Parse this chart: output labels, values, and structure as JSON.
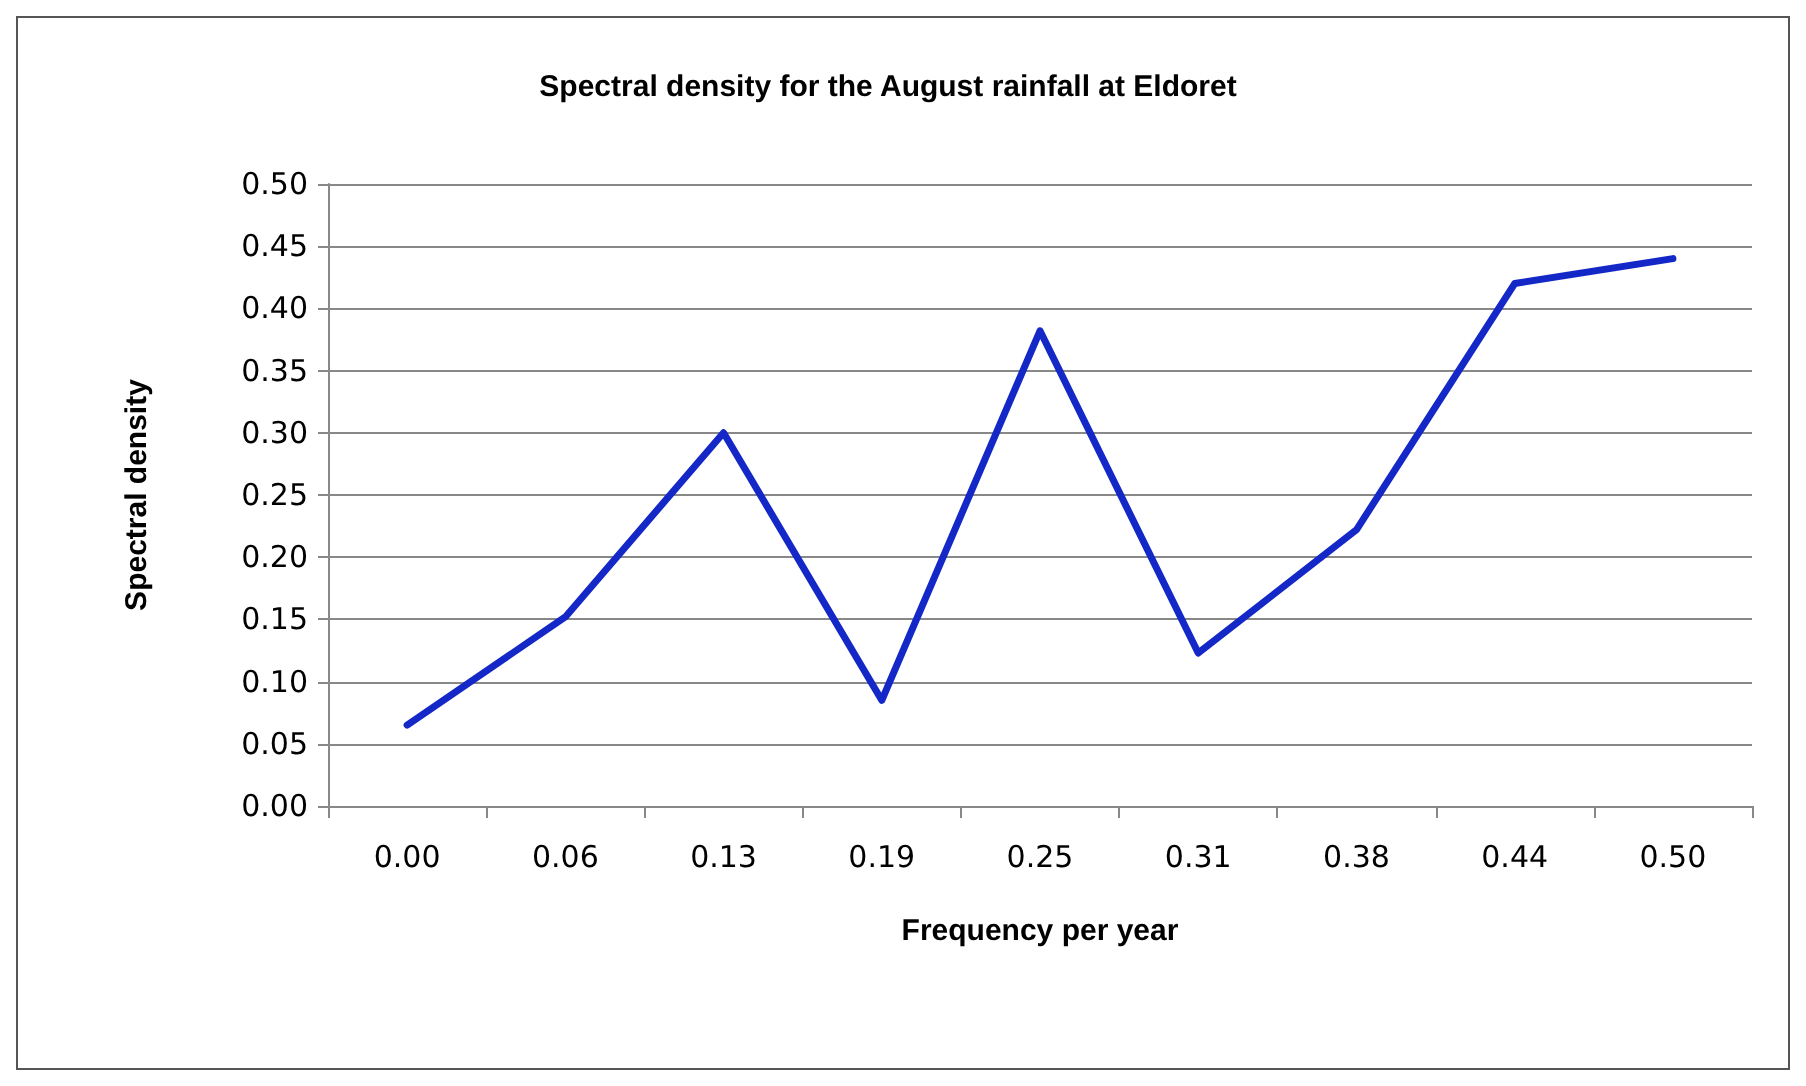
{
  "chart_data": {
    "type": "line",
    "title": "Spectral density for the August rainfall at Eldoret",
    "xlabel": "Frequency per year",
    "ylabel": "Spectral density",
    "categories": [
      "0.00",
      "0.06",
      "0.13",
      "0.19",
      "0.25",
      "0.31",
      "0.38",
      "0.44",
      "0.50"
    ],
    "series": [
      {
        "color": "#1428c8",
        "values": [
          0.065,
          0.152,
          0.3,
          0.085,
          0.382,
          0.123,
          0.222,
          0.42,
          0.44
        ]
      }
    ],
    "ylim": [
      0,
      0.5
    ],
    "yticks": [
      {
        "value": 0,
        "label": "0.00"
      },
      0.05,
      {
        "value": 0.1,
        "label": "0.10"
      },
      0.15,
      {
        "value": 0.2,
        "label": "0.20"
      },
      0.25,
      {
        "value": 0.3,
        "label": "0.30"
      },
      0.35,
      {
        "value": 0.4,
        "label": "0.40"
      },
      0.45,
      {
        "value": 0.5,
        "label": "0.50"
      }
    ],
    "grid": "y",
    "marker": "none",
    "line_style": "solid"
  }
}
